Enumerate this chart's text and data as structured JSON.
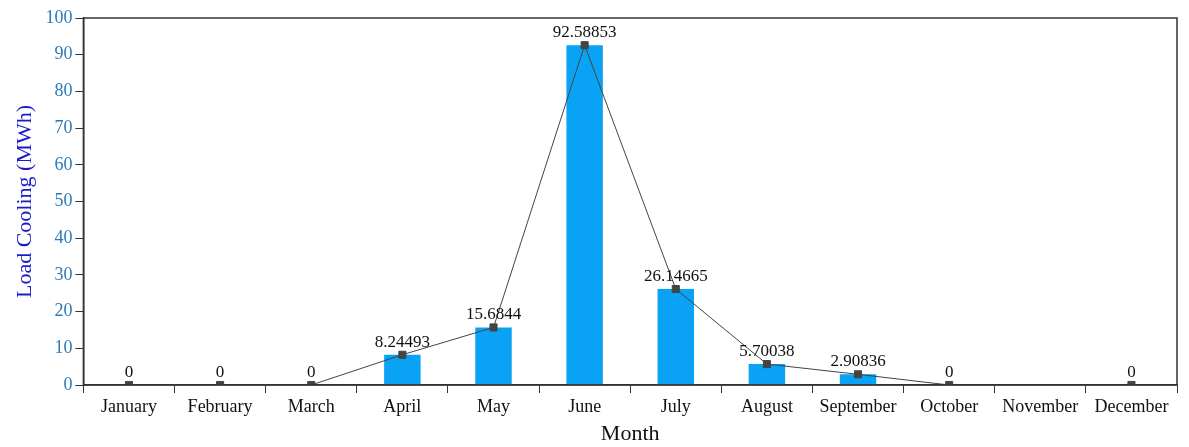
{
  "chart_data": {
    "type": "bar",
    "xlabel": "Month",
    "ylabel": "Load Cooling (MWh)",
    "categories": [
      "January",
      "February",
      "March",
      "April",
      "May",
      "June",
      "July",
      "August",
      "September",
      "October",
      "November",
      "December"
    ],
    "series": [
      {
        "color": "#0aa2f5",
        "values": [
          0,
          0,
          0,
          8.24493,
          15.6844,
          92.58853,
          26.14665,
          5.70038,
          2.90836,
          0,
          null,
          0
        ]
      },
      {
        "type": "line",
        "color": "#444444",
        "values": [
          0,
          0,
          0,
          8.24493,
          15.6844,
          92.58853,
          26.14665,
          5.70038,
          2.90836,
          0,
          null,
          0
        ],
        "value_labels": [
          "0",
          "0",
          "0",
          "8.24493",
          "15.6844",
          "92.58853",
          "26.14665",
          "5.70038",
          "2.90836",
          "0",
          null,
          "0"
        ]
      }
    ],
    "ylim": [
      0,
      100
    ],
    "yticks": [
      0,
      10,
      20,
      30,
      40,
      50,
      60,
      70,
      80,
      90,
      100
    ],
    "marker": "square"
  }
}
